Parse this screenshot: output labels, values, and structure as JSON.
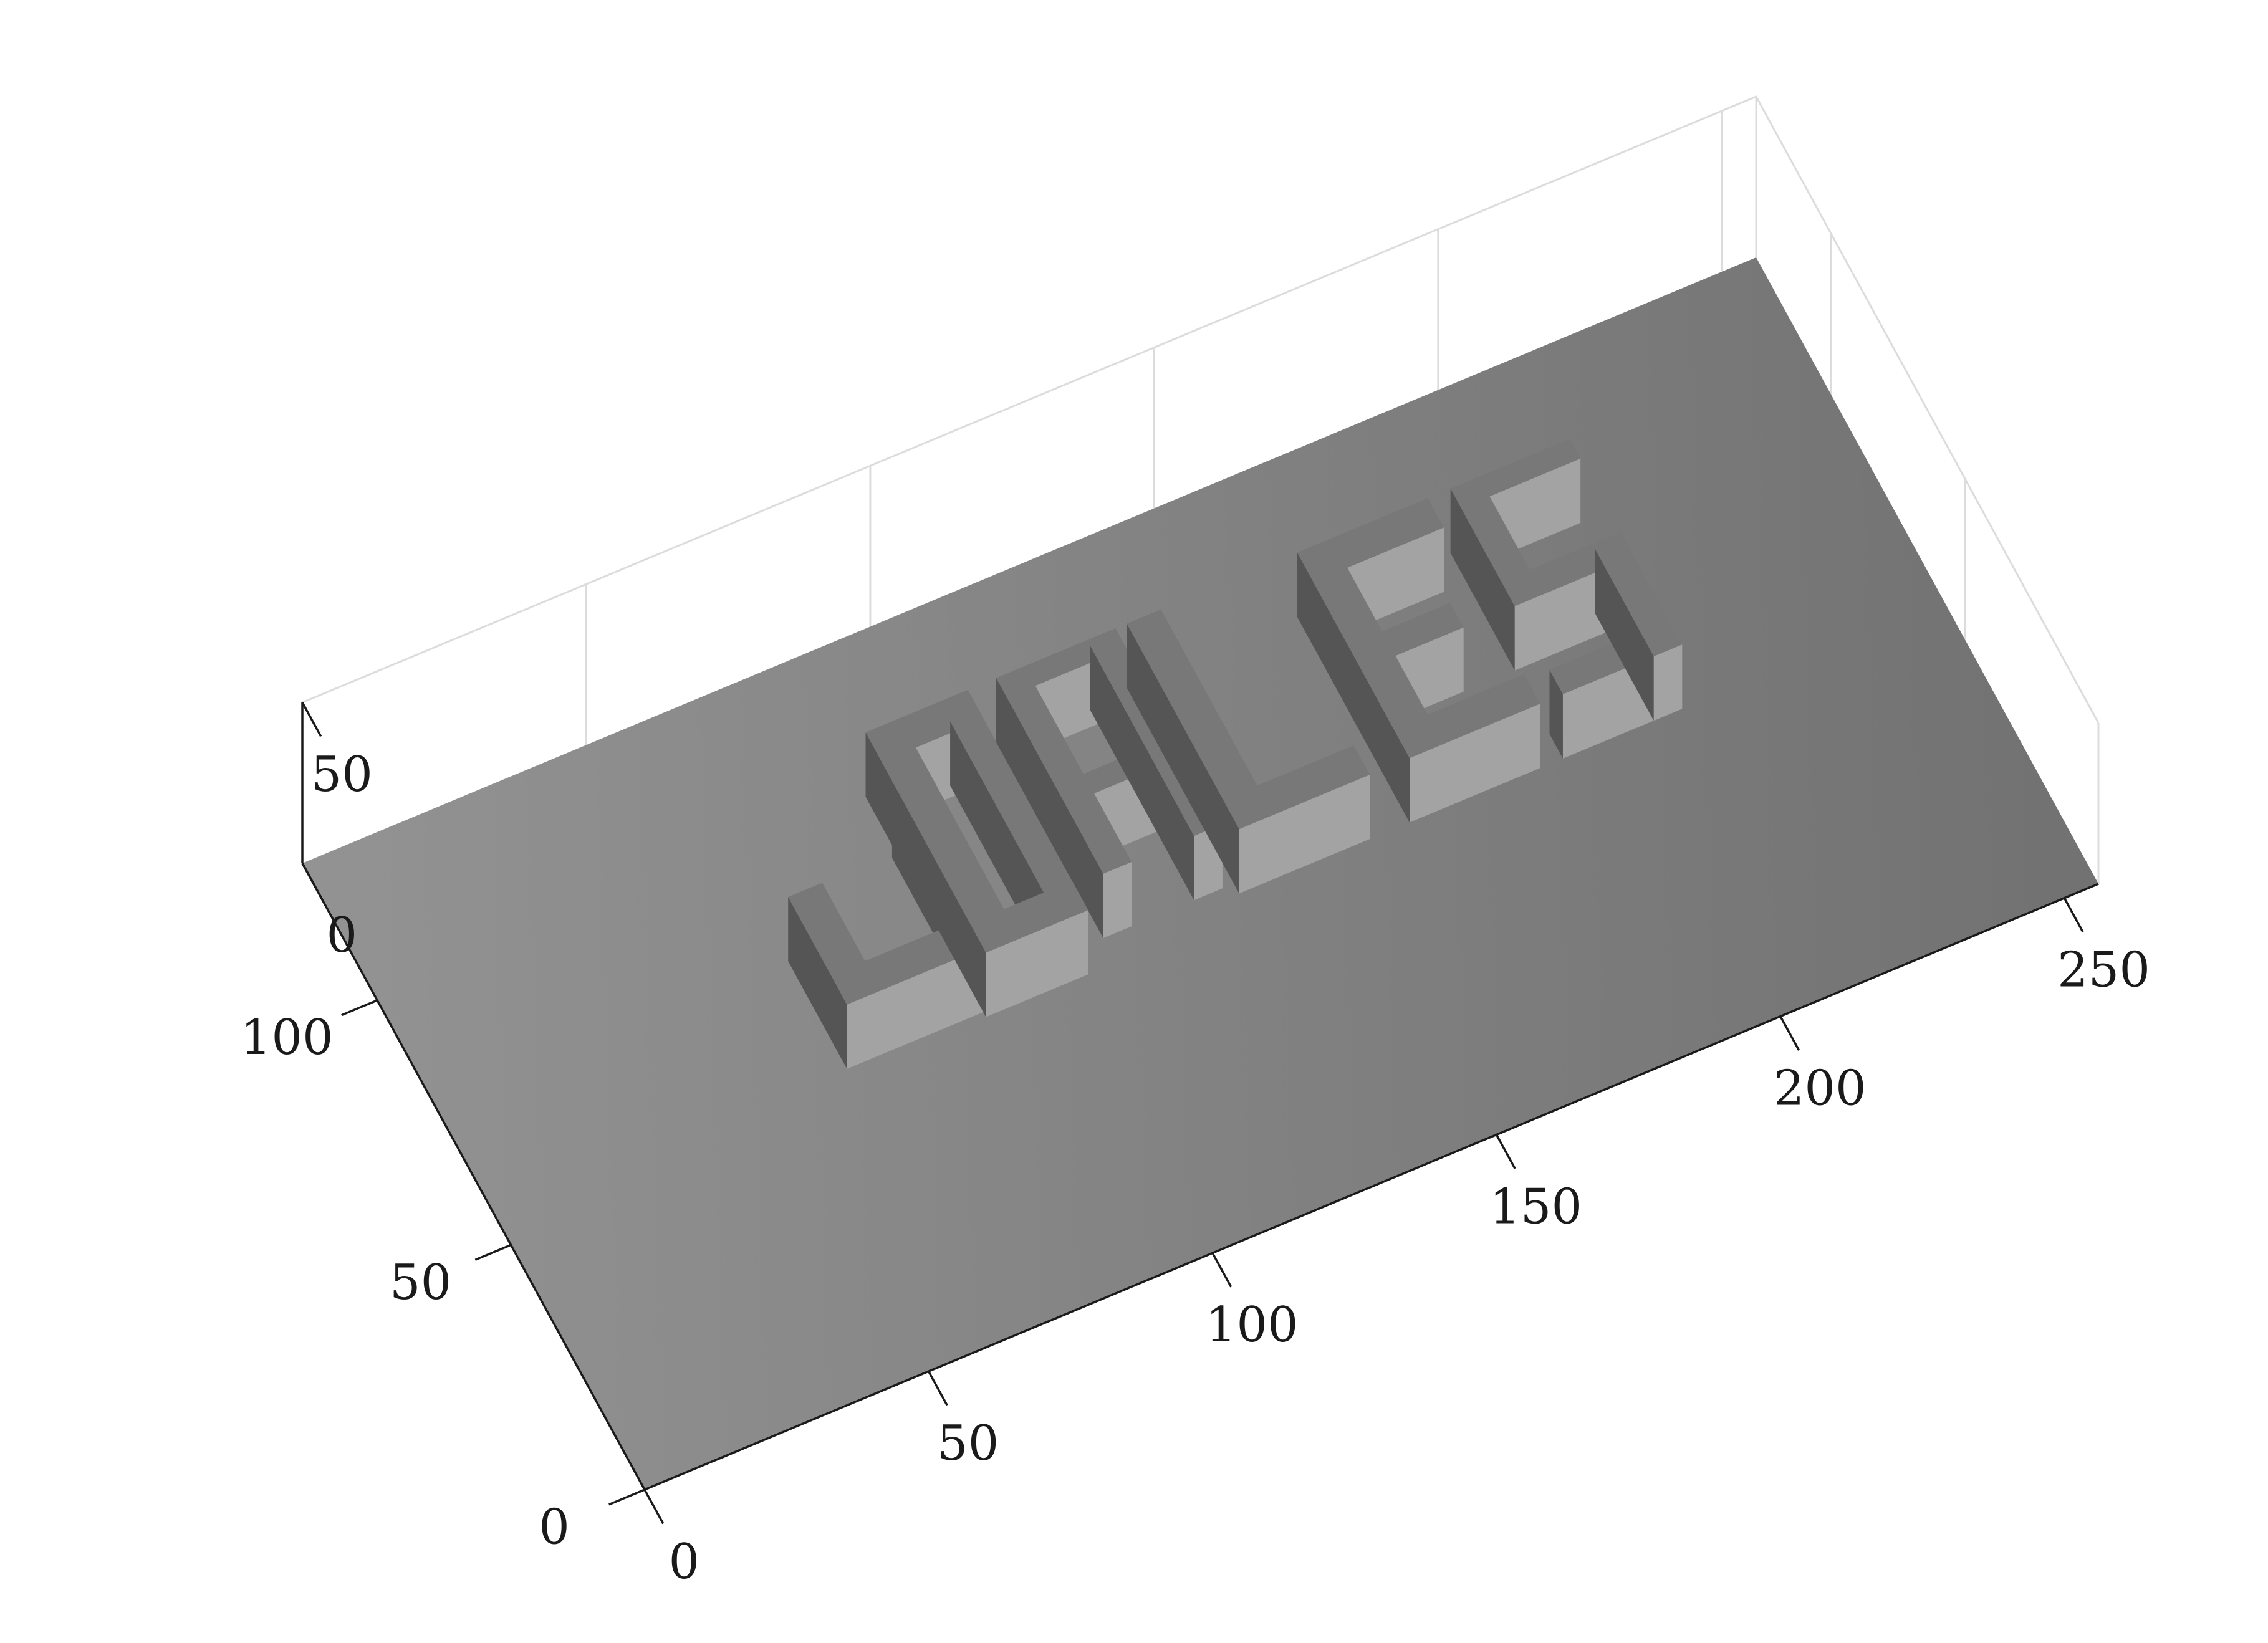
{
  "chart_data": {
    "type": "surface3d",
    "title": "",
    "xlabel": "",
    "ylabel": "",
    "zlabel": "",
    "xlim": [
      0,
      256
    ],
    "ylim": [
      0,
      128
    ],
    "zlim": [
      0,
      50
    ],
    "x_ticks": [
      0,
      50,
      100,
      150,
      200,
      250
    ],
    "y_ticks": [
      0,
      50,
      100
    ],
    "z_ticks": [
      0,
      50
    ],
    "x_tick_labels": [
      "0",
      "50",
      "100",
      "150",
      "200",
      "250"
    ],
    "y_tick_labels": [
      "0",
      "50",
      "100"
    ],
    "z_tick_labels": [
      "0",
      "50"
    ],
    "grid": true,
    "surface_text": "uDALES",
    "letter_height": 20,
    "colors": {
      "surface_light": "#939393",
      "surface_dark": "#727272",
      "block_top": "#787878",
      "block_face_light": "#a3a3a3",
      "block_face_dark": "#555555",
      "grid_line": "#dcdcdc",
      "axis_line": "#1a1a1a"
    }
  }
}
